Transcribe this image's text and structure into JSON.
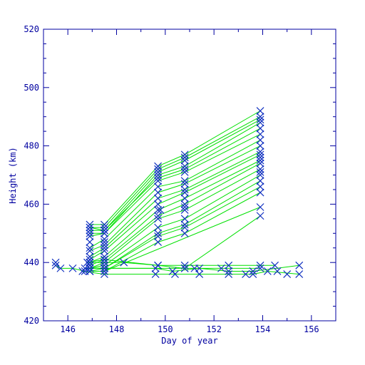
{
  "chart_data": {
    "type": "line",
    "title": "",
    "xlabel": "Day of year",
    "ylabel": "Height (km)",
    "xlim": [
      145,
      157
    ],
    "ylim": [
      420,
      520
    ],
    "xticks": [
      146,
      148,
      150,
      152,
      154,
      156
    ],
    "yticks": [
      420,
      440,
      460,
      480,
      500,
      520
    ],
    "grid": false,
    "legend": "none",
    "colors": {
      "axes": "#0000a0",
      "lines": "#00e000",
      "markers": "#1030c0"
    },
    "marker": "x",
    "series": [
      {
        "x": [
          146.9,
          147.5,
          149.7,
          150.8,
          153.9
        ],
        "y": [
          453,
          453,
          473,
          477,
          492
        ]
      },
      {
        "x": [
          146.9,
          147.5,
          149.7,
          150.8,
          153.9
        ],
        "y": [
          452,
          452,
          472,
          476,
          490
        ]
      },
      {
        "x": [
          146.9,
          147.5,
          149.7,
          150.8,
          153.9
        ],
        "y": [
          451,
          451,
          471,
          475,
          489
        ]
      },
      {
        "x": [
          146.9,
          147.5,
          149.7,
          150.8,
          153.9
        ],
        "y": [
          450,
          450,
          470,
          473,
          488
        ]
      },
      {
        "x": [
          146.9,
          147.5,
          149.7,
          150.8,
          153.9
        ],
        "y": [
          452,
          451,
          469,
          472,
          486
        ]
      },
      {
        "x": [
          146.9,
          147.5,
          149.7,
          150.8,
          153.9
        ],
        "y": [
          449,
          450,
          468,
          471,
          484
        ]
      },
      {
        "x": [
          146.9,
          147.5,
          149.7,
          150.8,
          153.9
        ],
        "y": [
          445,
          448,
          466,
          468,
          482
        ]
      },
      {
        "x": [
          146.9,
          147.5,
          149.7,
          150.8,
          153.9
        ],
        "y": [
          444,
          446,
          464,
          467,
          480
        ]
      },
      {
        "x": [
          146.9,
          147.5,
          149.7,
          150.8,
          153.9
        ],
        "y": [
          442,
          445,
          462,
          465,
          478
        ]
      },
      {
        "x": [
          146.9,
          147.5,
          149.7,
          150.8,
          153.9
        ],
        "y": [
          441,
          444,
          460,
          464,
          477
        ]
      },
      {
        "x": [
          146.9,
          147.5,
          149.7,
          150.8,
          153.9
        ],
        "y": [
          440,
          442,
          458,
          462,
          475
        ]
      },
      {
        "x": [
          146.9,
          147.5,
          149.7,
          150.8,
          153.9
        ],
        "y": [
          439,
          441,
          456,
          460,
          474
        ]
      },
      {
        "x": [
          146.9,
          147.5,
          149.7,
          150.8,
          153.9
        ],
        "y": [
          438,
          440,
          455,
          458,
          472
        ]
      },
      {
        "x": [
          146.9,
          147.5,
          149.7,
          150.8,
          153.9
        ],
        "y": [
          438,
          439,
          452,
          455,
          470
        ]
      },
      {
        "x": [
          146.9,
          147.5,
          149.7,
          150.8,
          153.9
        ],
        "y": [
          438,
          438,
          450,
          453,
          468
        ]
      },
      {
        "x": [
          146.9,
          147.5,
          149.7,
          150.8,
          153.9
        ],
        "y": [
          437,
          438,
          449,
          452,
          466
        ]
      },
      {
        "x": [
          146.9,
          147.5,
          149.7,
          150.8,
          153.9
        ],
        "y": [
          437,
          437,
          447,
          450,
          464
        ]
      },
      {
        "x": [
          146.9,
          147.5,
          153.9
        ],
        "y": [
          437,
          437,
          459
        ]
      },
      {
        "x": [
          146.9,
          147.5,
          150.8,
          153.9
        ],
        "y": [
          438,
          438,
          438,
          456
        ]
      },
      {
        "x": [
          146.8,
          147.5,
          149.7,
          150.8,
          152.6,
          153.9,
          154.5
        ],
        "y": [
          440,
          441,
          439,
          439,
          439,
          439,
          439
        ]
      },
      {
        "x": [
          146.7,
          147.5,
          149.6,
          150.3,
          151.4,
          152.6,
          153.6,
          155.5
        ],
        "y": [
          438,
          438,
          438,
          437,
          438,
          437,
          437,
          439
        ]
      },
      {
        "x": [
          146.6,
          147.5,
          149.6,
          150.4,
          151.4,
          152.6,
          153.6,
          154.2,
          155.5
        ],
        "y": [
          437,
          436,
          436,
          436,
          436,
          436,
          436,
          437,
          436
        ]
      },
      {
        "x": [
          145.5,
          145.7,
          146.2,
          146.7
        ],
        "y": [
          439,
          438,
          438,
          437
        ]
      },
      {
        "x": [
          146.9,
          148.3,
          149.7,
          150.8,
          153.9
        ],
        "y": [
          440,
          440,
          439,
          438,
          438
        ]
      }
    ],
    "extra_markers": [
      {
        "x": 145.5,
        "y": 440
      },
      {
        "x": 154.6,
        "y": 437
      },
      {
        "x": 155.0,
        "y": 436
      },
      {
        "x": 152.3,
        "y": 438
      },
      {
        "x": 151.2,
        "y": 438
      },
      {
        "x": 153.3,
        "y": 436
      },
      {
        "x": 146.9,
        "y": 447
      },
      {
        "x": 147.5,
        "y": 447
      },
      {
        "x": 149.8,
        "y": 458
      },
      {
        "x": 150.8,
        "y": 459
      },
      {
        "x": 153.9,
        "y": 476
      },
      {
        "x": 153.9,
        "y": 471
      }
    ]
  }
}
